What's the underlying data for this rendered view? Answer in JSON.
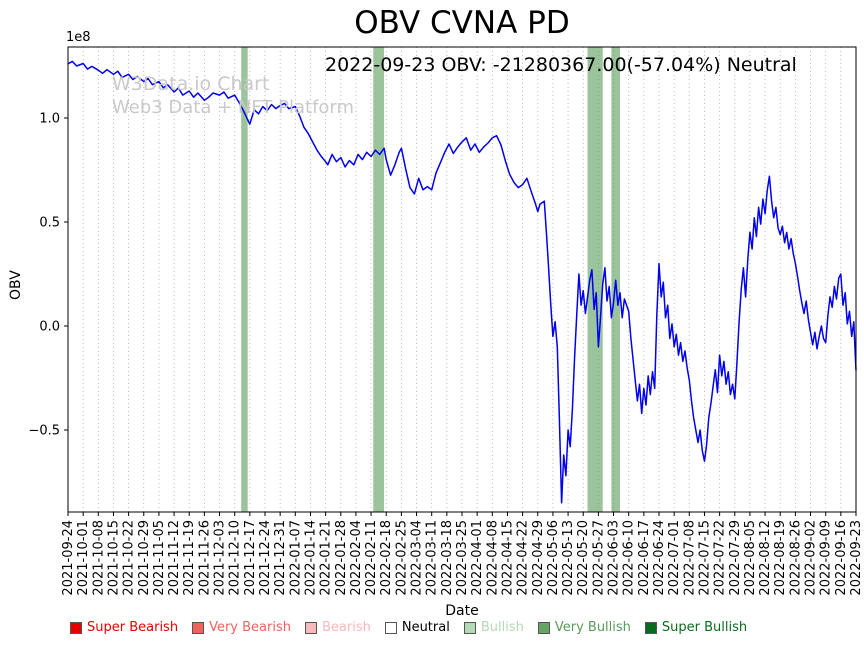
{
  "chart_data": {
    "type": "line",
    "title": "OBV CVNA PD",
    "annotation": "2022-09-23 OBV: -21280367.00(-57.04%) Neutral",
    "xlabel": "Date",
    "ylabel": "OBV",
    "y_offset_label": "1e8",
    "values_unit": "1e8",
    "ylim": [
      -0.9,
      1.34
    ],
    "grid": "vertical-dotted",
    "legend_position": "bottom",
    "line_color": "#0000ee",
    "band_color": "#67a567",
    "yticks": [
      {
        "value": 1.0,
        "label": "1.0"
      },
      {
        "value": 0.5,
        "label": "0.5"
      },
      {
        "value": 0.0,
        "label": "0.0"
      },
      {
        "value": -0.5,
        "label": "−0.5"
      }
    ],
    "x_axis": {
      "tick_interval_days": 7,
      "total_days": 364
    },
    "x_tick_labels": [
      "2021-09-24",
      "2021-10-01",
      "2021-10-08",
      "2021-10-15",
      "2021-10-22",
      "2021-10-29",
      "2021-11-05",
      "2021-11-12",
      "2021-11-19",
      "2021-11-26",
      "2021-12-03",
      "2021-12-10",
      "2021-12-17",
      "2021-12-24",
      "2021-12-31",
      "2022-01-07",
      "2022-01-14",
      "2022-01-21",
      "2022-01-28",
      "2022-02-04",
      "2022-02-11",
      "2022-02-18",
      "2022-02-25",
      "2022-03-04",
      "2022-03-11",
      "2022-03-18",
      "2022-03-25",
      "2022-04-01",
      "2022-04-08",
      "2022-04-15",
      "2022-04-22",
      "2022-04-29",
      "2022-05-06",
      "2022-05-13",
      "2022-05-20",
      "2022-05-27",
      "2022-06-03",
      "2022-06-10",
      "2022-06-17",
      "2022-06-24",
      "2022-07-01",
      "2022-07-08",
      "2022-07-15",
      "2022-07-22",
      "2022-07-29",
      "2022-08-05",
      "2022-08-12",
      "2022-08-19",
      "2022-08-26",
      "2022-09-02",
      "2022-09-09",
      "2022-09-16",
      "2022-09-23"
    ],
    "series": [
      {
        "name": "OBV",
        "points": [
          [
            0,
            1.26
          ],
          [
            2,
            1.272
          ],
          [
            4,
            1.25
          ],
          [
            7,
            1.262
          ],
          [
            9,
            1.235
          ],
          [
            11,
            1.248
          ],
          [
            14,
            1.23
          ],
          [
            16,
            1.215
          ],
          [
            18,
            1.232
          ],
          [
            21,
            1.21
          ],
          [
            23,
            1.225
          ],
          [
            25,
            1.195
          ],
          [
            28,
            1.21
          ],
          [
            30,
            1.185
          ],
          [
            32,
            1.2
          ],
          [
            35,
            1.175
          ],
          [
            37,
            1.19
          ],
          [
            39,
            1.16
          ],
          [
            42,
            1.175
          ],
          [
            44,
            1.145
          ],
          [
            46,
            1.16
          ],
          [
            49,
            1.125
          ],
          [
            51,
            1.145
          ],
          [
            53,
            1.11
          ],
          [
            56,
            1.13
          ],
          [
            58,
            1.1
          ],
          [
            60,
            1.12
          ],
          [
            63,
            1.085
          ],
          [
            65,
            1.1
          ],
          [
            67,
            1.12
          ],
          [
            70,
            1.11
          ],
          [
            72,
            1.125
          ],
          [
            74,
            1.095
          ],
          [
            77,
            1.11
          ],
          [
            79,
            1.075
          ],
          [
            81,
            1.035
          ],
          [
            84,
            0.97
          ],
          [
            85,
            1.005
          ],
          [
            86,
            1.04
          ],
          [
            88,
            1.02
          ],
          [
            90,
            1.055
          ],
          [
            92,
            1.035
          ],
          [
            94,
            1.065
          ],
          [
            96,
            1.045
          ],
          [
            98,
            1.06
          ],
          [
            100,
            1.07
          ],
          [
            102,
            1.045
          ],
          [
            105,
            1.055
          ],
          [
            107,
            1.01
          ],
          [
            109,
            0.955
          ],
          [
            111,
            0.925
          ],
          [
            113,
            0.885
          ],
          [
            115,
            0.845
          ],
          [
            117,
            0.815
          ],
          [
            119,
            0.79
          ],
          [
            120,
            0.775
          ],
          [
            122,
            0.825
          ],
          [
            124,
            0.79
          ],
          [
            126,
            0.81
          ],
          [
            128,
            0.765
          ],
          [
            130,
            0.795
          ],
          [
            132,
            0.775
          ],
          [
            134,
            0.825
          ],
          [
            136,
            0.8
          ],
          [
            138,
            0.835
          ],
          [
            140,
            0.815
          ],
          [
            142,
            0.845
          ],
          [
            144,
            0.825
          ],
          [
            146,
            0.855
          ],
          [
            147,
            0.8
          ],
          [
            149,
            0.725
          ],
          [
            151,
            0.775
          ],
          [
            153,
            0.835
          ],
          [
            154,
            0.855
          ],
          [
            156,
            0.755
          ],
          [
            158,
            0.665
          ],
          [
            160,
            0.635
          ],
          [
            162,
            0.71
          ],
          [
            164,
            0.655
          ],
          [
            166,
            0.67
          ],
          [
            168,
            0.655
          ],
          [
            170,
            0.735
          ],
          [
            172,
            0.785
          ],
          [
            174,
            0.835
          ],
          [
            176,
            0.875
          ],
          [
            178,
            0.83
          ],
          [
            180,
            0.86
          ],
          [
            182,
            0.885
          ],
          [
            184,
            0.905
          ],
          [
            186,
            0.845
          ],
          [
            188,
            0.875
          ],
          [
            190,
            0.835
          ],
          [
            192,
            0.86
          ],
          [
            194,
            0.88
          ],
          [
            196,
            0.905
          ],
          [
            198,
            0.915
          ],
          [
            200,
            0.87
          ],
          [
            202,
            0.795
          ],
          [
            204,
            0.73
          ],
          [
            206,
            0.69
          ],
          [
            208,
            0.665
          ],
          [
            210,
            0.68
          ],
          [
            212,
            0.71
          ],
          [
            214,
            0.645
          ],
          [
            216,
            0.585
          ],
          [
            217,
            0.55
          ],
          [
            218,
            0.585
          ],
          [
            220,
            0.6
          ],
          [
            221,
            0.45
          ],
          [
            222,
            0.28
          ],
          [
            223,
            0.1
          ],
          [
            224,
            -0.05
          ],
          [
            225,
            0.02
          ],
          [
            226,
            -0.1
          ],
          [
            227,
            -0.45
          ],
          [
            228,
            -0.85
          ],
          [
            229,
            -0.62
          ],
          [
            230,
            -0.72
          ],
          [
            231,
            -0.5
          ],
          [
            232,
            -0.58
          ],
          [
            233,
            -0.4
          ],
          [
            234,
            -0.15
          ],
          [
            235,
            0.05
          ],
          [
            236,
            0.25
          ],
          [
            237,
            0.1
          ],
          [
            238,
            0.17
          ],
          [
            239,
            0.06
          ],
          [
            240,
            0.14
          ],
          [
            241,
            0.22
          ],
          [
            242,
            0.27
          ],
          [
            243,
            0.08
          ],
          [
            244,
            0.16
          ],
          [
            245,
            -0.1
          ],
          [
            246,
            0.04
          ],
          [
            247,
            0.2
          ],
          [
            248,
            0.28
          ],
          [
            249,
            0.12
          ],
          [
            250,
            0.19
          ],
          [
            251,
            0.04
          ],
          [
            252,
            0.11
          ],
          [
            253,
            0.22
          ],
          [
            254,
            0.1
          ],
          [
            255,
            0.16
          ],
          [
            256,
            0.04
          ],
          [
            257,
            0.13
          ],
          [
            259,
            0.07
          ],
          [
            260,
            -0.06
          ],
          [
            262,
            -0.26
          ],
          [
            263,
            -0.36
          ],
          [
            264,
            -0.28
          ],
          [
            265,
            -0.42
          ],
          [
            266,
            -0.3
          ],
          [
            267,
            -0.38
          ],
          [
            268,
            -0.24
          ],
          [
            269,
            -0.33
          ],
          [
            270,
            -0.22
          ],
          [
            271,
            -0.3
          ],
          [
            272,
            0.05
          ],
          [
            273,
            0.3
          ],
          [
            274,
            0.14
          ],
          [
            275,
            0.21
          ],
          [
            276,
            0.04
          ],
          [
            277,
            0.1
          ],
          [
            278,
            -0.06
          ],
          [
            279,
            0.01
          ],
          [
            280,
            -0.1
          ],
          [
            281,
            -0.04
          ],
          [
            282,
            -0.14
          ],
          [
            283,
            -0.08
          ],
          [
            284,
            -0.17
          ],
          [
            285,
            -0.12
          ],
          [
            286,
            -0.2
          ],
          [
            287,
            -0.26
          ],
          [
            288,
            -0.36
          ],
          [
            289,
            -0.44
          ],
          [
            290,
            -0.5
          ],
          [
            291,
            -0.56
          ],
          [
            292,
            -0.5
          ],
          [
            293,
            -0.6
          ],
          [
            294,
            -0.65
          ],
          [
            295,
            -0.57
          ],
          [
            296,
            -0.44
          ],
          [
            297,
            -0.37
          ],
          [
            298,
            -0.29
          ],
          [
            299,
            -0.21
          ],
          [
            300,
            -0.32
          ],
          [
            301,
            -0.14
          ],
          [
            302,
            -0.24
          ],
          [
            303,
            -0.17
          ],
          [
            304,
            -0.28
          ],
          [
            305,
            -0.22
          ],
          [
            306,
            -0.33
          ],
          [
            307,
            -0.28
          ],
          [
            308,
            -0.35
          ],
          [
            309,
            -0.18
          ],
          [
            310,
            0.02
          ],
          [
            311,
            0.18
          ],
          [
            312,
            0.28
          ],
          [
            313,
            0.14
          ],
          [
            314,
            0.32
          ],
          [
            315,
            0.45
          ],
          [
            316,
            0.37
          ],
          [
            317,
            0.52
          ],
          [
            318,
            0.43
          ],
          [
            319,
            0.57
          ],
          [
            320,
            0.49
          ],
          [
            321,
            0.61
          ],
          [
            322,
            0.54
          ],
          [
            323,
            0.65
          ],
          [
            324,
            0.72
          ],
          [
            325,
            0.6
          ],
          [
            326,
            0.52
          ],
          [
            327,
            0.57
          ],
          [
            328,
            0.47
          ],
          [
            329,
            0.44
          ],
          [
            330,
            0.48
          ],
          [
            331,
            0.4
          ],
          [
            332,
            0.45
          ],
          [
            333,
            0.37
          ],
          [
            334,
            0.42
          ],
          [
            335,
            0.35
          ],
          [
            336,
            0.3
          ],
          [
            337,
            0.24
          ],
          [
            338,
            0.17
          ],
          [
            339,
            0.11
          ],
          [
            340,
            0.06
          ],
          [
            341,
            0.12
          ],
          [
            342,
            0.03
          ],
          [
            343,
            -0.03
          ],
          [
            344,
            -0.09
          ],
          [
            345,
            -0.03
          ],
          [
            346,
            -0.11
          ],
          [
            347,
            -0.05
          ],
          [
            348,
            0
          ],
          [
            349,
            -0.06
          ],
          [
            350,
            -0.08
          ],
          [
            351,
            0.05
          ],
          [
            352,
            0.14
          ],
          [
            353,
            0.09
          ],
          [
            354,
            0.19
          ],
          [
            355,
            0.13
          ],
          [
            356,
            0.23
          ],
          [
            357,
            0.25
          ],
          [
            358,
            0.1
          ],
          [
            359,
            0.16
          ],
          [
            360,
            0.01
          ],
          [
            361,
            0.07
          ],
          [
            362,
            -0.05
          ],
          [
            363,
            0.02
          ],
          [
            364,
            -0.213
          ]
        ]
      }
    ],
    "signal_bands": [
      {
        "label": "Very Bullish",
        "from_day": 80,
        "to_day": 83
      },
      {
        "label": "Very Bullish",
        "from_day": 141,
        "to_day": 146
      },
      {
        "label": "Very Bullish",
        "from_day": 240,
        "to_day": 247
      },
      {
        "label": "Very Bullish",
        "from_day": 251,
        "to_day": 255
      }
    ],
    "watermark": {
      "line1": "W3Data.io Chart",
      "line2": "Web3 Data + NFT Platform"
    },
    "legend": [
      {
        "label": "Super Bearish",
        "color": "#e60000",
        "text_color": "#e60000"
      },
      {
        "label": "Very Bearish",
        "color": "#f1625f",
        "text_color": "#f1625f"
      },
      {
        "label": "Bearish",
        "color": "#f9b8bc",
        "text_color": "#f9b8bc"
      },
      {
        "label": "Neutral",
        "color": "#ffffff",
        "text_color": "#000000"
      },
      {
        "label": "Bullish",
        "color": "#b5d9b5",
        "text_color": "#b5d9b5"
      },
      {
        "label": "Very Bullish",
        "color": "#67a567",
        "text_color": "#5b9b5b"
      },
      {
        "label": "Super Bullish",
        "color": "#0a6b1f",
        "text_color": "#0a6b1f"
      }
    ]
  }
}
